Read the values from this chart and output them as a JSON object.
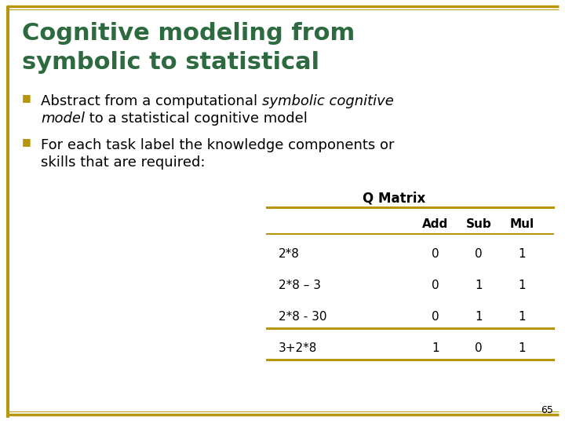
{
  "title_line1": "Cognitive modeling from",
  "title_line2": "symbolic to statistical",
  "title_color": "#2D6A3F",
  "title_fontsize": 22,
  "background_color": "#FFFFFF",
  "border_color": "#B8960C",
  "bullet_color": "#B8960C",
  "bullet1_pre_italic": "Abstract from a computational ",
  "bullet1_italic": "symbolic cognitive",
  "bullet1_line2_italic": "model",
  "bullet1_line2_rest": " to a statistical cognitive model",
  "bullet2_line1": "For each task label the knowledge components or",
  "bullet2_line2": "skills that are required:",
  "table_title": "Q Matrix",
  "table_columns": [
    "Add",
    "Sub",
    "Mul"
  ],
  "table_rows": [
    [
      "2*8",
      "0",
      "0",
      "1"
    ],
    [
      "2*8 – 3",
      "0",
      "1",
      "1"
    ],
    [
      "2*8 - 30",
      "0",
      "1",
      "1"
    ],
    [
      "3+2*8",
      "1",
      "0",
      "1"
    ]
  ],
  "table_line_color": "#B8960C",
  "page_number": "65",
  "text_color": "#000000",
  "body_fontsize": 13,
  "table_fontsize": 11
}
